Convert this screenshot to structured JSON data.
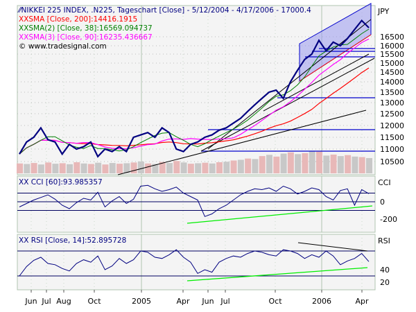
{
  "chart_data": {
    "type": "line",
    "title": "NIKKEI 225 INDEX, .N225, Tageschart [Close] - 5/12/2004 - 4/17/2006 - 17000.4",
    "currency_label": "JPY",
    "legend": [
      {
        "prefix": "XX",
        "text": "SMA [Close, 200]:14416.1915",
        "color": "#ff0000"
      },
      {
        "prefix": "XX",
        "text": "SMA(2) [Close, 38]:16569.094737",
        "color": "#008000"
      },
      {
        "prefix": "XX",
        "text": "SMA(3) [Close, 90]:16235.436667",
        "color": "#ff00ff"
      }
    ],
    "copyright": "© www.tradesignal.com",
    "price_ticks": [
      10500,
      11000,
      11500,
      12000,
      12500,
      13000,
      13500,
      14000,
      14500,
      15000,
      15500,
      16000,
      16500
    ],
    "x_labels": [
      "Jun",
      "Jul",
      "Aug",
      "Oct",
      "2005",
      "Apr",
      "Jun",
      "Jul",
      "Oct",
      "2006",
      "Apr"
    ],
    "price": [
      10800,
      11300,
      11500,
      11900,
      11400,
      11300,
      10800,
      11200,
      11000,
      11100,
      11300,
      10700,
      11000,
      10900,
      11100,
      10900,
      11500,
      11600,
      11700,
      11500,
      11900,
      11700,
      11000,
      10900,
      11200,
      11300,
      11500,
      11600,
      11800,
      11900,
      12100,
      12300,
      12600,
      12900,
      13200,
      13500,
      13600,
      13200,
      14000,
      14600,
      15200,
      15500,
      16300,
      15700,
      16200,
      16000,
      16400,
      16900,
      17400,
      17000
    ],
    "volume": [
      40,
      38,
      42,
      36,
      44,
      39,
      41,
      37,
      45,
      40,
      38,
      43,
      36,
      42,
      39,
      41,
      44,
      48,
      40,
      38,
      46,
      42,
      50,
      44,
      39,
      41,
      43,
      40,
      45,
      47,
      52,
      55,
      60,
      58,
      70,
      75,
      68,
      80,
      85,
      78,
      82,
      90,
      88,
      72,
      76,
      70,
      74,
      68,
      66,
      62
    ],
    "cci": {
      "label": "XX CCI [60]:93.985357",
      "panel_label": "CCI",
      "ticks": [
        0,
        -200
      ],
      "values": [
        -60,
        -20,
        20,
        50,
        80,
        30,
        -40,
        -80,
        -10,
        40,
        20,
        110,
        -60,
        10,
        60,
        -20,
        30,
        180,
        190,
        150,
        120,
        140,
        170,
        100,
        60,
        20,
        -170,
        -140,
        -80,
        -40,
        20,
        80,
        120,
        150,
        140,
        160,
        120,
        180,
        150,
        90,
        120,
        160,
        140,
        60,
        20,
        130,
        150,
        -40,
        140,
        94
      ]
    },
    "rsi": {
      "label": "XX RSI [Close, 14]:52.895728",
      "panel_label": "RSI",
      "ticks": [
        40,
        20
      ],
      "values": [
        30,
        45,
        55,
        60,
        50,
        48,
        42,
        38,
        50,
        56,
        52,
        62,
        40,
        46,
        58,
        50,
        56,
        70,
        68,
        60,
        58,
        64,
        72,
        60,
        52,
        34,
        40,
        36,
        52,
        58,
        62,
        60,
        66,
        70,
        68,
        64,
        62,
        72,
        70,
        66,
        58,
        64,
        60,
        70,
        62,
        48,
        54,
        58,
        66,
        53
      ]
    }
  }
}
